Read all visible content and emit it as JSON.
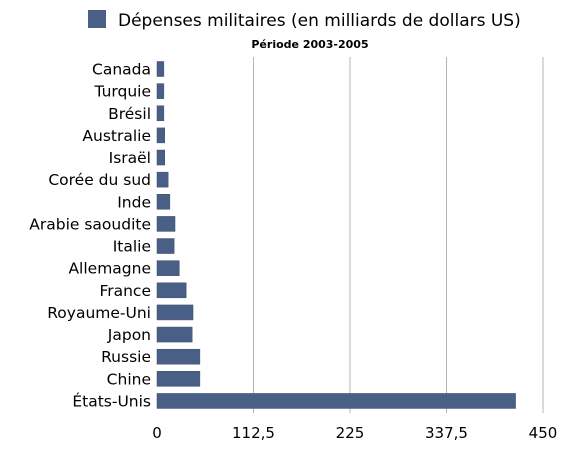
{
  "chart_data": {
    "type": "bar",
    "orientation": "horizontal",
    "title": "Période 2003-2005",
    "legend": {
      "label": "Dépenses militaires (en milliards de dollars US)",
      "color": "#4a5f86",
      "placement": "top"
    },
    "categories": [
      "Canada",
      "Turquie",
      "Brésil",
      "Australie",
      "Israël",
      "Corée du sud",
      "Inde",
      "Arabie saoudite",
      "Italie",
      "Allemagne",
      "France",
      "Royaume-Uni",
      "Japon",
      "Russie",
      "Chine",
      "États-Unis"
    ],
    "series": [
      {
        "name": "Dépenses militaires (en milliards de dollars US)",
        "values": [
          8,
          8,
          8,
          9,
          9,
          13,
          15,
          21,
          20,
          26,
          34,
          42,
          41,
          50,
          50,
          418
        ]
      }
    ],
    "xlim": [
      0,
      450
    ],
    "xticks": [
      "0",
      "112,5",
      "225",
      "337,5",
      "450"
    ],
    "xtick_values": [
      0,
      112.5,
      225,
      337.5,
      450
    ],
    "grid": "vertical",
    "bar_color": "#4a5f86"
  }
}
